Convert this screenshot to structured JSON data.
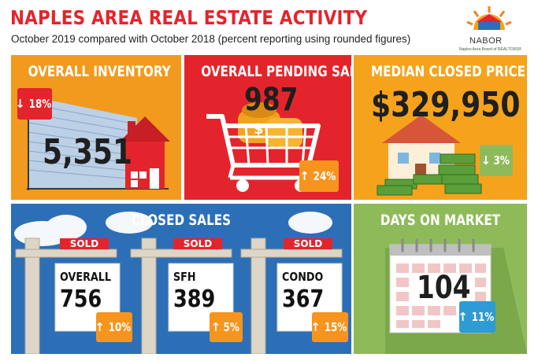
{
  "header": {
    "title": "NAPLES AREA REAL ESTATE ACTIVITY",
    "subtitle": "October 2019 compared with October 2018 (percent reporting using rounded figures)"
  },
  "logo": {
    "name": "NABOR",
    "tagline": "Naples Area Board of REALTORS®"
  },
  "icons": {
    "down": "↓",
    "up": "↑"
  },
  "colors": {
    "red": "#e4242c",
    "orange": "#f29a1d",
    "blue": "#2c6fb6",
    "green": "#8fba5a",
    "badge_up": "#f7941d",
    "badge_down": "#e4242c",
    "badge_days": "#2e9bd6"
  },
  "inventory": {
    "title": "OVERALL INVENTORY",
    "value": "5,351",
    "change": "18%",
    "direction": "down"
  },
  "pending": {
    "title": "OVERALL PENDING SALES",
    "value": "987",
    "change": "24%",
    "direction": "up"
  },
  "median": {
    "title": "MEDIAN CLOSED PRICE",
    "value": "$329,950",
    "change": "3%",
    "direction": "down"
  },
  "closed": {
    "title": "CLOSED SALES",
    "sold_label": "SOLD",
    "signs": [
      {
        "label": "OVERALL",
        "value": "756",
        "change": "10%",
        "direction": "up"
      },
      {
        "label": "SFH",
        "value": "389",
        "change": "5%",
        "direction": "up"
      },
      {
        "label": "CONDO",
        "value": "367",
        "change": "15%",
        "direction": "up"
      }
    ]
  },
  "days": {
    "title": "DAYS ON MARKET",
    "value": "104",
    "change": "11%",
    "direction": "up"
  }
}
